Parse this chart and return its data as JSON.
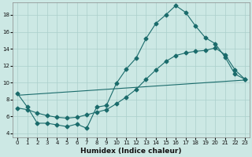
{
  "xlabel": "Humidex (Indice chaleur)",
  "bg_color": "#cce8e4",
  "grid_color": "#aacfcb",
  "line_color": "#1a6b6b",
  "xlim": [
    -0.5,
    23.5
  ],
  "ylim": [
    3.5,
    19.5
  ],
  "yticks": [
    4,
    6,
    8,
    10,
    12,
    14,
    16,
    18
  ],
  "xticks": [
    0,
    1,
    2,
    3,
    4,
    5,
    6,
    7,
    8,
    9,
    10,
    11,
    12,
    13,
    14,
    15,
    16,
    17,
    18,
    19,
    20,
    21,
    22,
    23
  ],
  "curve1_x": [
    0,
    1,
    2,
    3,
    4,
    5,
    6,
    7,
    8,
    9,
    10,
    11,
    12,
    13,
    14,
    15,
    16,
    17,
    18,
    19,
    20,
    21,
    22,
    23
  ],
  "curve1_y": [
    8.7,
    7.1,
    5.2,
    5.2,
    5.0,
    4.8,
    5.1,
    4.6,
    7.1,
    7.3,
    9.9,
    11.6,
    12.9,
    15.2,
    17.0,
    18.0,
    19.1,
    18.3,
    16.7,
    15.3,
    14.6,
    13.0,
    11.0,
    10.4
  ],
  "curve2_x": [
    0,
    23
  ],
  "curve2_y": [
    8.5,
    10.3
  ],
  "curve3_x": [
    0,
    1,
    2,
    3,
    4,
    5,
    6,
    7,
    8,
    9,
    10,
    11,
    12,
    13,
    14,
    15,
    16,
    17,
    18,
    19,
    20,
    21,
    22,
    23
  ],
  "curve3_y": [
    7.0,
    6.8,
    6.4,
    6.1,
    5.9,
    5.8,
    5.9,
    6.2,
    6.5,
    6.8,
    7.5,
    8.3,
    9.2,
    10.4,
    11.5,
    12.5,
    13.2,
    13.5,
    13.7,
    13.8,
    14.1,
    13.3,
    11.5,
    10.4
  ],
  "xlabel_fontsize": 6.5,
  "tick_fontsize": 5
}
